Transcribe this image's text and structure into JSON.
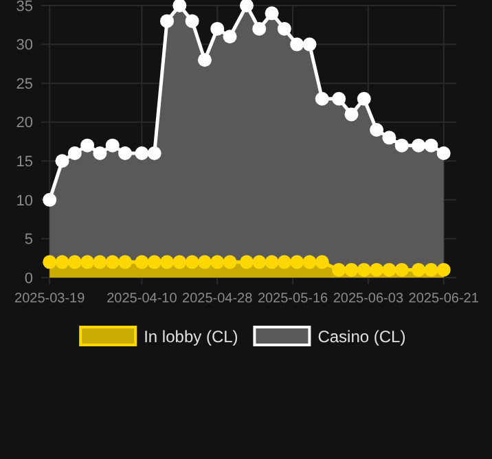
{
  "chart_data": {
    "type": "area",
    "x": [
      "2025-03-19",
      "2025-03-22",
      "2025-03-25",
      "2025-03-28",
      "2025-03-31",
      "2025-04-03",
      "2025-04-06",
      "2025-04-10",
      "2025-04-13",
      "2025-04-16",
      "2025-04-19",
      "2025-04-22",
      "2025-04-25",
      "2025-04-28",
      "2025-05-01",
      "2025-05-05",
      "2025-05-08",
      "2025-05-11",
      "2025-05-14",
      "2025-05-17",
      "2025-05-20",
      "2025-05-23",
      "2025-05-27",
      "2025-05-30",
      "2025-06-02",
      "2025-06-05",
      "2025-06-08",
      "2025-06-11",
      "2025-06-15",
      "2025-06-18",
      "2025-06-21"
    ],
    "series": [
      {
        "name": "Casino (CL)",
        "color": "#ffffff",
        "values": [
          10,
          15,
          16,
          17,
          16,
          17,
          16,
          16,
          16,
          33,
          35,
          33,
          28,
          32,
          31,
          35,
          32,
          34,
          32,
          30,
          30,
          23,
          23,
          21,
          23,
          19,
          18,
          17,
          17,
          17,
          16
        ]
      },
      {
        "name": "In lobby (CL)",
        "color": "#ffd700",
        "values": [
          2,
          2,
          2,
          2,
          2,
          2,
          2,
          2,
          2,
          2,
          2,
          2,
          2,
          2,
          2,
          2,
          2,
          2,
          2,
          2,
          2,
          2,
          1,
          1,
          1,
          1,
          1,
          1,
          1,
          1,
          1
        ]
      }
    ],
    "xlim": [
      "2025-03-17",
      "2025-06-24"
    ],
    "xticks": [
      "2025-03-19",
      "2025-04-10",
      "2025-04-28",
      "2025-05-16",
      "2025-06-03",
      "2025-06-21"
    ],
    "ylim": [
      0,
      35
    ],
    "yticks": [
      0,
      5,
      10,
      15,
      20,
      25,
      30,
      35
    ],
    "grid": true,
    "legend": "bottom",
    "marker": "circle"
  }
}
